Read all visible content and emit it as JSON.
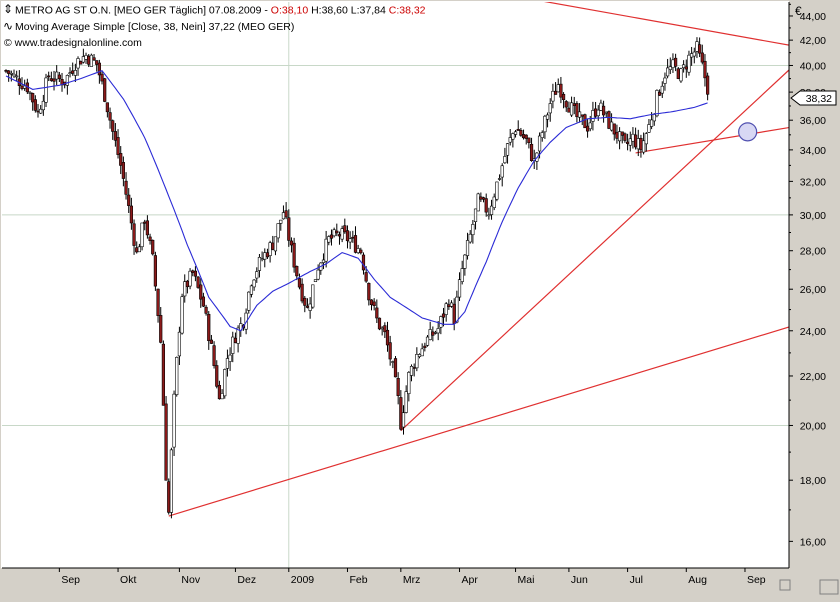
{
  "header": {
    "line1_pre": "METRO AG ST O.N. [MEO GER  Täglich] 07.08.2009 - ",
    "open": "O:38,10",
    "hl": " H:38,60 L:37,84 ",
    "close": "C:38,32",
    "line2": "Moving Average Simple [Close, 38, Nein] 37,22 (MEO GER)",
    "line3": "© www.tradesignalonline.com"
  },
  "axis": {
    "currency": "€",
    "last_price": "38,32"
  },
  "colors": {
    "up": "#ffffff",
    "down": "#8b1a1a",
    "candle_outline": "#000000",
    "ma": "#2b2bd6",
    "trend": "#e03030",
    "grid": "#c8d8c8",
    "bg": "#ffffff"
  },
  "chart_data": {
    "type": "candlestick",
    "title": "METRO AG ST O.N. [MEO GER Täglich] 07.08.2009",
    "ylim": [
      15.2,
      45.2
    ],
    "scale": "log",
    "y_ticks": [
      "16,00",
      "18,00",
      "20,00",
      "22,00",
      "24,00",
      "26,00",
      "28,00",
      "30,00",
      "32,00",
      "34,00",
      "36,00",
      "38,00",
      "40,00",
      "42,00",
      "44,00"
    ],
    "x_ticks": [
      "Sep",
      "Okt",
      "Nov",
      "Dez",
      "2009",
      "Feb",
      "Mrz",
      "Apr",
      "Mai",
      "Jun",
      "Jul",
      "Aug",
      "Sep"
    ],
    "x_tick_day_index": [
      20,
      42,
      65,
      86,
      106,
      128,
      148,
      170,
      191,
      211,
      233,
      255,
      277
    ],
    "n_days": 295,
    "price_keypoints": [
      [
        0,
        39.6
      ],
      [
        8,
        38.4
      ],
      [
        12,
        36.5
      ],
      [
        16,
        39.2
      ],
      [
        22,
        38.8
      ],
      [
        26,
        40.2
      ],
      [
        30,
        40.8
      ],
      [
        34,
        40.1
      ],
      [
        37,
        37.8
      ],
      [
        40,
        35.2
      ],
      [
        43,
        33.0
      ],
      [
        46,
        30.4
      ],
      [
        49,
        27.8
      ],
      [
        52,
        29.8
      ],
      [
        55,
        27.5
      ],
      [
        58,
        23.5
      ],
      [
        60,
        18.2
      ],
      [
        61,
        16.9
      ],
      [
        63,
        21.0
      ],
      [
        66,
        25.8
      ],
      [
        70,
        26.8
      ],
      [
        74,
        25.2
      ],
      [
        77,
        23.2
      ],
      [
        80,
        21.0
      ],
      [
        83,
        22.8
      ],
      [
        86,
        23.8
      ],
      [
        89,
        24.5
      ],
      [
        92,
        26.5
      ],
      [
        96,
        27.6
      ],
      [
        100,
        28.4
      ],
      [
        104,
        30.2
      ],
      [
        107,
        28.0
      ],
      [
        110,
        26.2
      ],
      [
        113,
        25.0
      ],
      [
        117,
        27.2
      ],
      [
        121,
        28.6
      ],
      [
        125,
        28.9
      ],
      [
        129,
        28.6
      ],
      [
        133,
        28.0
      ],
      [
        136,
        25.8
      ],
      [
        139,
        24.5
      ],
      [
        142,
        23.8
      ],
      [
        145,
        22.3
      ],
      [
        147,
        21.0
      ],
      [
        148,
        20.1
      ],
      [
        151,
        22.0
      ],
      [
        154,
        22.9
      ],
      [
        158,
        23.6
      ],
      [
        162,
        24.1
      ],
      [
        166,
        25.5
      ],
      [
        168,
        24.6
      ],
      [
        171,
        27.0
      ],
      [
        174,
        28.8
      ],
      [
        177,
        30.8
      ],
      [
        181,
        30.2
      ],
      [
        185,
        32.4
      ],
      [
        188,
        34.2
      ],
      [
        191,
        35.5
      ],
      [
        195,
        34.6
      ],
      [
        198,
        33.2
      ],
      [
        201,
        35.2
      ],
      [
        204,
        37.2
      ],
      [
        207,
        38.6
      ],
      [
        210,
        37.4
      ],
      [
        214,
        36.2
      ],
      [
        218,
        35.6
      ],
      [
        222,
        37.1
      ],
      [
        226,
        35.8
      ],
      [
        229,
        35.0
      ],
      [
        232,
        34.2
      ],
      [
        235,
        34.8
      ],
      [
        238,
        34.1
      ],
      [
        241,
        35.6
      ],
      [
        244,
        37.6
      ],
      [
        247,
        39.4
      ],
      [
        250,
        39.9
      ],
      [
        253,
        39.3
      ],
      [
        256,
        40.6
      ],
      [
        259,
        41.3
      ],
      [
        261,
        39.9
      ],
      [
        263,
        38.32
      ]
    ],
    "moving_average": {
      "name": "Moving Average Simple [Close, 38, Nein]",
      "last_value": 37.22,
      "keypoints": [
        [
          0,
          39.2
        ],
        [
          10,
          38.2
        ],
        [
          20,
          38.5
        ],
        [
          28,
          39.0
        ],
        [
          36,
          39.6
        ],
        [
          44,
          37.5
        ],
        [
          52,
          34.8
        ],
        [
          60,
          31.5
        ],
        [
          68,
          28.3
        ],
        [
          76,
          25.6
        ],
        [
          84,
          24.2
        ],
        [
          88,
          24.0
        ],
        [
          94,
          25.2
        ],
        [
          100,
          25.9
        ],
        [
          106,
          26.3
        ],
        [
          114,
          26.9
        ],
        [
          120,
          27.3
        ],
        [
          126,
          27.9
        ],
        [
          132,
          27.6
        ],
        [
          138,
          26.5
        ],
        [
          144,
          25.6
        ],
        [
          150,
          25.1
        ],
        [
          156,
          24.6
        ],
        [
          164,
          24.3
        ],
        [
          168,
          24.3
        ],
        [
          172,
          24.9
        ],
        [
          180,
          27.4
        ],
        [
          186,
          29.6
        ],
        [
          192,
          31.6
        ],
        [
          198,
          33.3
        ],
        [
          204,
          34.5
        ],
        [
          210,
          35.5
        ],
        [
          218,
          36.1
        ],
        [
          226,
          36.2
        ],
        [
          234,
          36.1
        ],
        [
          242,
          36.4
        ],
        [
          250,
          36.6
        ],
        [
          258,
          36.9
        ],
        [
          263,
          37.22
        ]
      ]
    },
    "trendlines": [
      {
        "from": [
          61,
          16.8
        ],
        "to": [
          320,
          25.2
        ]
      },
      {
        "from": [
          148,
          19.8
        ],
        "to": [
          320,
          45.0
        ]
      },
      {
        "from": [
          236,
          33.8
        ],
        "to": [
          320,
          36.3
        ]
      },
      {
        "from": [
          172,
          46.5
        ],
        "to": [
          320,
          40.6
        ]
      }
    ],
    "marker": {
      "day": 278,
      "price": 35.2
    }
  }
}
